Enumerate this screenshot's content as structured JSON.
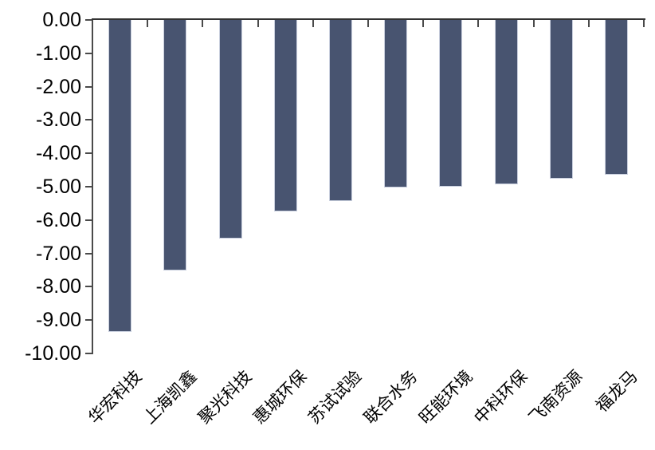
{
  "chart_data": {
    "type": "bar",
    "title": "",
    "categories": [
      "华宏科技",
      "上海凯鑫",
      "聚光科技",
      "惠城环保",
      "苏试试验",
      "联合水务",
      "旺能环境",
      "中科环保",
      "飞南资源",
      "福龙马"
    ],
    "values": [
      -9.36,
      -7.51,
      -6.55,
      -5.74,
      -5.44,
      -5.03,
      -5.0,
      -4.92,
      -4.77,
      -4.64
    ],
    "ylim": [
      -10,
      0
    ],
    "ytick_step": 1,
    "ytick_labels": [
      "0.00",
      "-1.00",
      "-2.00",
      "-3.00",
      "-4.00",
      "-5.00",
      "-6.00",
      "-7.00",
      "-8.00",
      "-9.00",
      "-10.00"
    ],
    "xlabel": "",
    "ylabel": "",
    "grid": false,
    "legend_position": "none",
    "bar_color": "#485470",
    "bar_border_color": "#c9cfde",
    "axis_color": "#4a4a4a",
    "text_color": "#000000",
    "background_color": "#ffffff"
  }
}
